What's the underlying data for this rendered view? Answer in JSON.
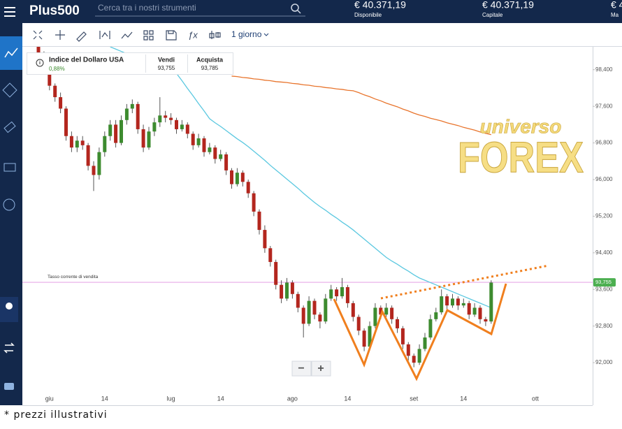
{
  "header": {
    "logo": "Plus500",
    "search": "Cerca tra i nostri strumenti",
    "available_amount": "€ 40.371,19",
    "available_label": "Disponibile",
    "capital_amount": "€ 40.371,19",
    "capital_label": "Capitale",
    "third_amount": "€ 4",
    "third_label": "Ma"
  },
  "toolbar": {
    "interval": "1 giorno"
  },
  "instrument": {
    "name": "Indice del Dollaro USA",
    "change": "0,88%",
    "sell_label": "Vendi",
    "sell": "93,755",
    "buy_label": "Acquista",
    "buy": "93,785"
  },
  "zoom": {
    "out": "−",
    "in": "+"
  },
  "watermark": {
    "line1": "universo",
    "line2": "FOREX"
  },
  "caption": "* prezzi illustrativi",
  "chart_data": {
    "type": "candlestick",
    "up_color": "#3d8b2f",
    "down_color": "#b3261e",
    "ylim": [
      91.07,
      98.9
    ],
    "yticks": [
      {
        "value": 98.4,
        "label": "98,400"
      },
      {
        "value": 97.6,
        "label": "97,600"
      },
      {
        "value": 96.8,
        "label": "96,800"
      },
      {
        "value": 96,
        "label": "96,000"
      },
      {
        "value": 95.2,
        "label": "95,200"
      },
      {
        "value": 94.4,
        "label": "94,400"
      },
      {
        "value": 93.6,
        "label": "93,600"
      },
      {
        "value": 92.8,
        "label": "92,800"
      },
      {
        "value": 92,
        "label": "92,000"
      }
    ],
    "current": {
      "value": 93.755,
      "label": "93,755",
      "text": "Tasso corrente di vendita",
      "color": "#e7a9e7",
      "badge_color": "#4caf50"
    },
    "categories": [
      null,
      null,
      "giu",
      null,
      null,
      null,
      null,
      null,
      null,
      null,
      null,
      null,
      "14",
      null,
      null,
      null,
      null,
      null,
      null,
      null,
      null,
      null,
      null,
      null,
      "lug",
      null,
      null,
      null,
      null,
      null,
      null,
      null,
      null,
      "14",
      null,
      null,
      null,
      null,
      null,
      null,
      null,
      null,
      null,
      null,
      null,
      null,
      "ago",
      null,
      null,
      null,
      null,
      null,
      null,
      null,
      null,
      null,
      "14",
      null,
      null,
      null,
      null,
      null,
      null,
      null,
      null,
      null,
      null,
      null,
      "set",
      null,
      null,
      null,
      null,
      null,
      null,
      null,
      null,
      "14",
      null,
      null,
      null,
      null,
      null,
      null,
      null,
      null,
      null,
      null,
      null,
      null,
      "ott"
    ],
    "candles": [
      [
        98.9,
        98.95,
        98.7,
        98.75
      ],
      [
        98.75,
        98.8,
        98.3,
        98.4
      ],
      [
        98.4,
        98.45,
        97.95,
        98.05
      ],
      [
        98.05,
        98.1,
        97.7,
        97.8
      ],
      [
        97.8,
        97.9,
        97.45,
        97.55
      ],
      [
        97.55,
        97.6,
        96.85,
        96.95
      ],
      [
        96.95,
        97.05,
        96.6,
        96.7
      ],
      [
        96.7,
        96.95,
        96.6,
        96.85
      ],
      [
        96.85,
        96.95,
        96.65,
        96.75
      ],
      [
        96.75,
        96.8,
        96.2,
        96.3
      ],
      [
        96.3,
        96.4,
        95.75,
        96.1
      ],
      [
        96.1,
        96.7,
        96.0,
        96.6
      ],
      [
        96.6,
        97.05,
        96.5,
        96.95
      ],
      [
        96.95,
        97.3,
        96.85,
        97.2
      ],
      [
        97.2,
        97.3,
        96.7,
        96.8
      ],
      [
        96.8,
        97.4,
        96.75,
        97.3
      ],
      [
        97.3,
        97.65,
        97.2,
        97.55
      ],
      [
        97.55,
        97.75,
        97.45,
        97.65
      ],
      [
        97.65,
        97.7,
        97.0,
        97.1
      ],
      [
        97.1,
        97.2,
        96.6,
        96.7
      ],
      [
        96.7,
        97.15,
        96.65,
        97.05
      ],
      [
        97.05,
        97.35,
        96.95,
        97.25
      ],
      [
        97.25,
        97.8,
        97.15,
        97.4
      ],
      [
        97.4,
        97.5,
        97.25,
        97.35
      ],
      [
        97.35,
        97.45,
        97.2,
        97.3
      ],
      [
        97.3,
        97.35,
        97.0,
        97.1
      ],
      [
        97.1,
        97.3,
        97.05,
        97.2
      ],
      [
        97.2,
        97.25,
        96.9,
        97.0
      ],
      [
        97.0,
        97.05,
        96.65,
        96.75
      ],
      [
        96.75,
        97.0,
        96.7,
        96.9
      ],
      [
        96.9,
        96.95,
        96.5,
        96.6
      ],
      [
        96.6,
        96.8,
        96.55,
        96.7
      ],
      [
        96.7,
        96.75,
        96.35,
        96.45
      ],
      [
        96.45,
        96.65,
        96.4,
        96.55
      ],
      [
        96.55,
        96.6,
        96.1,
        96.2
      ],
      [
        96.2,
        96.25,
        95.8,
        95.9
      ],
      [
        95.9,
        96.25,
        95.85,
        96.15
      ],
      [
        96.15,
        96.2,
        95.85,
        95.95
      ],
      [
        95.95,
        96.0,
        95.6,
        95.7
      ],
      [
        95.7,
        95.75,
        95.2,
        95.3
      ],
      [
        95.3,
        95.35,
        94.8,
        94.9
      ],
      [
        94.9,
        95.0,
        94.4,
        94.5
      ],
      [
        94.5,
        94.55,
        94.1,
        94.2
      ],
      [
        94.2,
        94.25,
        93.6,
        93.7
      ],
      [
        93.7,
        93.8,
        93.3,
        93.4
      ],
      [
        93.4,
        93.85,
        93.35,
        93.75
      ],
      [
        93.75,
        93.8,
        93.4,
        93.5
      ],
      [
        93.5,
        93.55,
        93.1,
        93.2
      ],
      [
        93.2,
        93.25,
        92.55,
        92.85
      ],
      [
        92.85,
        93.45,
        92.8,
        93.35
      ],
      [
        93.35,
        93.4,
        92.95,
        93.05
      ],
      [
        93.05,
        93.1,
        92.75,
        92.9
      ],
      [
        92.9,
        93.5,
        92.85,
        93.4
      ],
      [
        93.4,
        93.7,
        93.35,
        93.6
      ],
      [
        93.6,
        93.65,
        93.35,
        93.45
      ],
      [
        93.45,
        93.85,
        93.4,
        93.65
      ],
      [
        93.65,
        93.7,
        93.2,
        93.3
      ],
      [
        93.3,
        93.35,
        92.9,
        93.0
      ],
      [
        93.0,
        93.05,
        92.6,
        92.7
      ],
      [
        92.7,
        92.75,
        92.25,
        92.35
      ],
      [
        92.35,
        92.9,
        92.3,
        92.8
      ],
      [
        92.8,
        93.3,
        92.75,
        93.2
      ],
      [
        93.2,
        93.25,
        92.95,
        93.05
      ],
      [
        93.05,
        93.3,
        93.0,
        93.2
      ],
      [
        93.2,
        93.25,
        92.85,
        92.95
      ],
      [
        92.95,
        93.0,
        92.65,
        92.75
      ],
      [
        92.75,
        92.8,
        92.3,
        92.4
      ],
      [
        92.4,
        92.45,
        92.05,
        92.15
      ],
      [
        92.15,
        92.2,
        91.9,
        92.0
      ],
      [
        92.0,
        92.4,
        91.95,
        92.3
      ],
      [
        92.3,
        92.65,
        92.25,
        92.55
      ],
      [
        92.55,
        93.05,
        92.5,
        92.95
      ],
      [
        92.95,
        93.2,
        92.9,
        93.1
      ],
      [
        93.1,
        93.6,
        93.05,
        93.45
      ],
      [
        93.45,
        93.5,
        93.15,
        93.25
      ],
      [
        93.25,
        93.5,
        93.2,
        93.4
      ],
      [
        93.4,
        93.45,
        93.15,
        93.25
      ],
      [
        93.25,
        93.4,
        93.2,
        93.3
      ],
      [
        93.3,
        93.35,
        92.95,
        93.05
      ],
      [
        93.05,
        93.3,
        93.0,
        93.2
      ],
      [
        93.2,
        93.25,
        92.85,
        92.95
      ],
      [
        92.95,
        93.0,
        92.8,
        92.9
      ],
      [
        92.9,
        93.8,
        92.85,
        93.75
      ],
      null,
      null,
      null,
      null,
      null,
      null,
      null,
      null
    ],
    "lines": [
      {
        "color": "#5bc8e0",
        "values": [
          null,
          null,
          null,
          null,
          null,
          null,
          null,
          null,
          null,
          null,
          null,
          null,
          null,
          98.9,
          98.85,
          98.8,
          98.75,
          98.7,
          98.66,
          98.61,
          98.56,
          98.51,
          98.46,
          98.41,
          98.36,
          98.32,
          98.16,
          97.99,
          97.83,
          97.66,
          97.5,
          97.33,
          97.24,
          97.16,
          97.07,
          96.98,
          96.89,
          96.81,
          96.72,
          96.62,
          96.52,
          96.42,
          96.31,
          96.21,
          96.11,
          96.01,
          95.91,
          95.81,
          95.7,
          95.6,
          95.5,
          95.41,
          95.33,
          95.24,
          95.16,
          95.07,
          94.99,
          94.9,
          94.8,
          94.7,
          94.6,
          94.5,
          94.4,
          94.3,
          94.22,
          94.15,
          94.07,
          94.0,
          93.92,
          93.85,
          93.8,
          93.75,
          93.7,
          93.65,
          93.6,
          93.55,
          93.5,
          93.45,
          93.4,
          93.35,
          93.3,
          93.25,
          93.2,
          null,
          null,
          null,
          null,
          null,
          null,
          null,
          null
        ]
      },
      {
        "color": "#e8742c",
        "values": [
          null,
          null,
          null,
          null,
          null,
          null,
          null,
          null,
          null,
          null,
          null,
          null,
          null,
          null,
          null,
          null,
          null,
          null,
          null,
          null,
          null,
          null,
          null,
          null,
          null,
          null,
          null,
          null,
          null,
          null,
          null,
          null,
          null,
          null,
          null,
          98.26,
          98.25,
          98.23,
          98.22,
          98.2,
          98.19,
          98.17,
          98.16,
          98.14,
          98.13,
          98.12,
          98.1,
          98.09,
          98.07,
          98.06,
          98.04,
          98.03,
          98.01,
          98.0,
          97.98,
          97.97,
          97.95,
          97.94,
          97.9,
          97.85,
          97.81,
          97.76,
          97.72,
          97.67,
          97.63,
          97.59,
          97.54,
          97.5,
          97.45,
          97.41,
          97.38,
          97.34,
          97.31,
          97.28,
          97.24,
          97.21,
          97.18,
          97.14,
          97.11,
          97.08,
          97.04,
          97.01,
          96.98,
          null,
          null,
          null,
          null,
          null,
          null,
          null,
          null
        ]
      }
    ]
  }
}
